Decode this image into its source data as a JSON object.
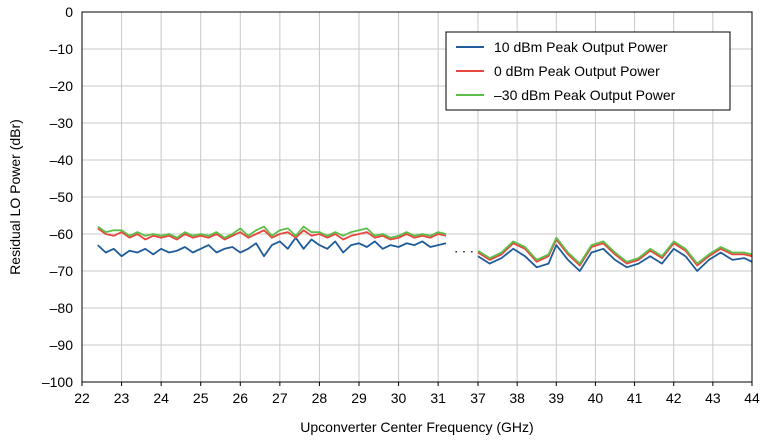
{
  "chart_data": {
    "type": "line",
    "title": "",
    "xlabel": "Upconverter Center Frequency (GHz)",
    "ylabel": "Residual LO Power (dBr)",
    "ylim": [
      -100,
      0
    ],
    "yticks": [
      0,
      -10,
      -20,
      -30,
      -40,
      -50,
      -60,
      -70,
      -80,
      -90,
      -100
    ],
    "ytick_labels": [
      "0",
      "–10",
      "–20",
      "–30",
      "–40",
      "–50",
      "–60",
      "–70",
      "–80",
      "–90",
      "–100"
    ],
    "grid": true,
    "legend_position": "top-right",
    "axis_break": {
      "from": 31.3,
      "to": 37.0,
      "label": ". . ."
    },
    "segments": [
      {
        "xlim": [
          22,
          31.3
        ],
        "xticks": [
          22,
          23,
          24,
          25,
          26,
          27,
          28,
          29,
          30,
          31
        ]
      },
      {
        "xlim": [
          37,
          44
        ],
        "xticks": [
          37,
          38,
          39,
          40,
          41,
          42,
          43,
          44
        ]
      }
    ],
    "series": [
      {
        "name": "10 dBm Peak Output Power",
        "color": "#1f5c99",
        "x": [
          22.4,
          22.6,
          22.8,
          23.0,
          23.2,
          23.4,
          23.6,
          23.8,
          24.0,
          24.2,
          24.4,
          24.6,
          24.8,
          25.0,
          25.2,
          25.4,
          25.6,
          25.8,
          26.0,
          26.2,
          26.4,
          26.6,
          26.8,
          27.0,
          27.2,
          27.4,
          27.6,
          27.8,
          28.0,
          28.2,
          28.4,
          28.6,
          28.8,
          29.0,
          29.2,
          29.4,
          29.6,
          29.8,
          30.0,
          30.2,
          30.4,
          30.6,
          30.8,
          31.0,
          31.2,
          37.0,
          37.3,
          37.6,
          37.9,
          38.2,
          38.5,
          38.8,
          39.0,
          39.3,
          39.6,
          39.9,
          40.2,
          40.5,
          40.8,
          41.1,
          41.4,
          41.7,
          42.0,
          42.3,
          42.6,
          42.9,
          43.2,
          43.5,
          43.8,
          44.0
        ],
        "values": [
          -63,
          -65,
          -64,
          -66,
          -64.5,
          -65,
          -64,
          -65.5,
          -64,
          -65,
          -64.5,
          -63.5,
          -65,
          -64,
          -63,
          -65,
          -64,
          -63.5,
          -65,
          -64,
          -62.5,
          -66,
          -63,
          -62,
          -64,
          -61,
          -64,
          -61.5,
          -63,
          -64,
          -62,
          -65,
          -63,
          -62.5,
          -63.5,
          -62,
          -64,
          -63,
          -63.5,
          -62.5,
          -63,
          -62,
          -63.5,
          -63,
          -62.5,
          -66,
          -68,
          -66.5,
          -64,
          -66,
          -69,
          -68,
          -63,
          -67,
          -70,
          -65,
          -64,
          -67,
          -69,
          -68,
          -66,
          -68,
          -64,
          -66,
          -70,
          -67,
          -65,
          -67,
          -66.5,
          -67.5
        ]
      },
      {
        "name": "0 dBm Peak Output Power",
        "color": "#e8473f",
        "x": [
          22.4,
          22.6,
          22.8,
          23.0,
          23.2,
          23.4,
          23.6,
          23.8,
          24.0,
          24.2,
          24.4,
          24.6,
          24.8,
          25.0,
          25.2,
          25.4,
          25.6,
          25.8,
          26.0,
          26.2,
          26.4,
          26.6,
          26.8,
          27.0,
          27.2,
          27.4,
          27.6,
          27.8,
          28.0,
          28.2,
          28.4,
          28.6,
          28.8,
          29.0,
          29.2,
          29.4,
          29.6,
          29.8,
          30.0,
          30.2,
          30.4,
          30.6,
          30.8,
          31.0,
          31.2,
          37.0,
          37.3,
          37.6,
          37.9,
          38.2,
          38.5,
          38.8,
          39.0,
          39.3,
          39.6,
          39.9,
          40.2,
          40.5,
          40.8,
          41.1,
          41.4,
          41.7,
          42.0,
          42.3,
          42.6,
          42.9,
          43.2,
          43.5,
          43.8,
          44.0
        ],
        "values": [
          -58.5,
          -60,
          -60.5,
          -59.5,
          -61,
          -60,
          -61.5,
          -60.5,
          -61,
          -60.5,
          -61.5,
          -60,
          -61,
          -60.5,
          -61,
          -60,
          -61.5,
          -60.5,
          -59.5,
          -61,
          -60,
          -59,
          -61,
          -60,
          -59.5,
          -61,
          -59,
          -60.5,
          -60,
          -61,
          -60,
          -61.5,
          -60.5,
          -60,
          -59.5,
          -61,
          -60.5,
          -61.5,
          -61,
          -60,
          -61,
          -60.5,
          -61,
          -60,
          -60.5,
          -65,
          -67,
          -65.5,
          -62.5,
          -64,
          -67.5,
          -66,
          -61.5,
          -65.5,
          -68.5,
          -63.5,
          -62.5,
          -65.5,
          -68,
          -67,
          -64.5,
          -66.5,
          -62.5,
          -64.5,
          -68.5,
          -66,
          -64,
          -65.5,
          -65.5,
          -66
        ]
      },
      {
        "name": "–30 dBm Peak Output Power",
        "color": "#5cbf4a",
        "x": [
          22.4,
          22.6,
          22.8,
          23.0,
          23.2,
          23.4,
          23.6,
          23.8,
          24.0,
          24.2,
          24.4,
          24.6,
          24.8,
          25.0,
          25.2,
          25.4,
          25.6,
          25.8,
          26.0,
          26.2,
          26.4,
          26.6,
          26.8,
          27.0,
          27.2,
          27.4,
          27.6,
          27.8,
          28.0,
          28.2,
          28.4,
          28.6,
          28.8,
          29.0,
          29.2,
          29.4,
          29.6,
          29.8,
          30.0,
          30.2,
          30.4,
          30.6,
          30.8,
          31.0,
          31.2,
          37.0,
          37.3,
          37.6,
          37.9,
          38.2,
          38.5,
          38.8,
          39.0,
          39.3,
          39.6,
          39.9,
          40.2,
          40.5,
          40.8,
          41.1,
          41.4,
          41.7,
          42.0,
          42.3,
          42.6,
          42.9,
          43.2,
          43.5,
          43.8,
          44.0
        ],
        "values": [
          -58,
          -59.5,
          -59,
          -59,
          -60.5,
          -59.5,
          -60.5,
          -60,
          -60.5,
          -60,
          -61,
          -59.5,
          -60.5,
          -60,
          -60.5,
          -59.5,
          -61,
          -60,
          -58.5,
          -60.5,
          -59,
          -58,
          -60.5,
          -59,
          -58.5,
          -60.5,
          -58,
          -59.5,
          -59.5,
          -60.5,
          -59.5,
          -60.5,
          -59.5,
          -59,
          -58.5,
          -60.5,
          -60,
          -61,
          -60.5,
          -59.5,
          -60.5,
          -60,
          -60.5,
          -59.5,
          -60,
          -64.5,
          -66.5,
          -65,
          -62,
          -63.5,
          -67,
          -65.5,
          -61,
          -65,
          -68,
          -63,
          -62,
          -65,
          -67.5,
          -66.5,
          -64,
          -66,
          -62,
          -64,
          -68,
          -65.5,
          -63.5,
          -65,
          -65,
          -65.5
        ]
      }
    ]
  }
}
